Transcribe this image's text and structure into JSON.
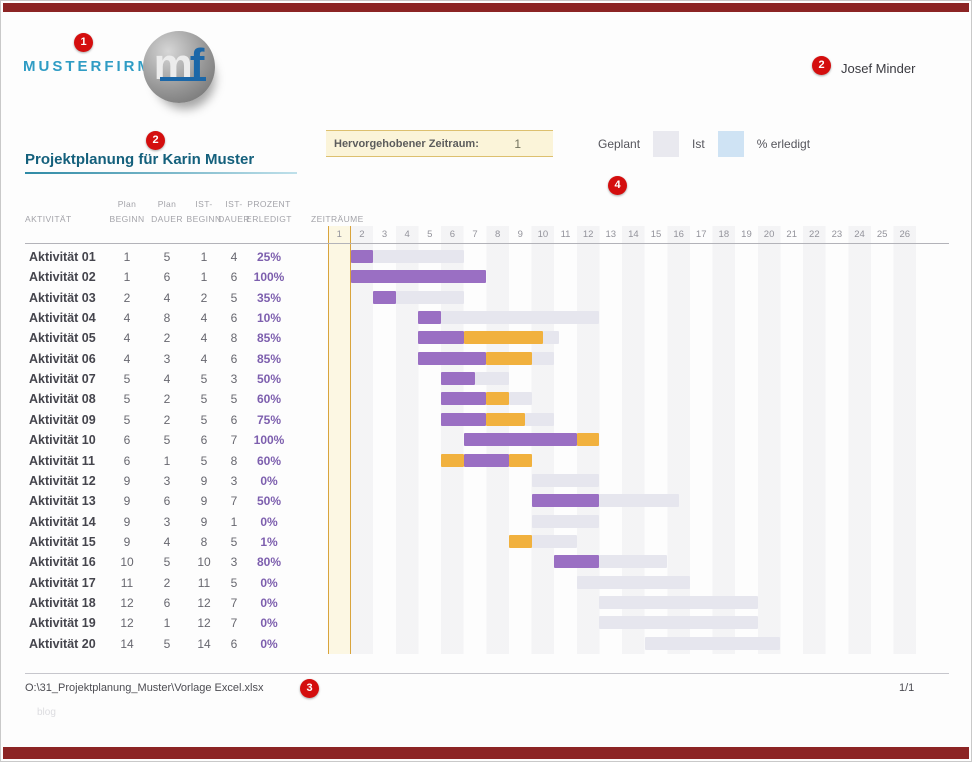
{
  "theme": {
    "accent_red": "#d40e0e",
    "frame_maroon": "#8c2424",
    "company_blue": "#2f9cc4",
    "title_teal": "#14607c",
    "logo_blue": "#1b67a8",
    "pct_purple": "#7d5fae"
  },
  "header": {
    "company": "MUSTERFIRMA",
    "logo_m": "m",
    "logo_f": "f",
    "user_name": "Josef Minder"
  },
  "callouts": {
    "n1": "1",
    "n2": "2",
    "n3": "3",
    "n4": "4"
  },
  "title": {
    "text": "Projektplanung für Karin Muster"
  },
  "highlight": {
    "label": "Hervorgehobener Zeitraum:",
    "value": "1"
  },
  "legend": {
    "labels": [
      "Geplant",
      "Ist",
      "% erledigt"
    ],
    "swatch_colors": [
      "#e9e9ef",
      "#cfe3f4"
    ]
  },
  "columns": {
    "activity": "AKTIVITÄT",
    "plan_beginn": {
      "l1": "Plan",
      "l2": "BEGINN"
    },
    "plan_dauer": {
      "l1": "Plan",
      "l2": "DAUER"
    },
    "ist_beginn": {
      "l1": "IST-",
      "l2": "BEGINN"
    },
    "ist_dauer": {
      "l1": "IST-",
      "l2": "DAUER"
    },
    "prozent": {
      "l1": "PROZENT",
      "l2": "ERLEDIGT"
    },
    "zeitraeume": "ZEITRÄUME"
  },
  "footer": {
    "path": "O:\\31_Projektplanung_Muster\\Vorlage Excel.xlsx",
    "page_indicator": "1/1",
    "watermark": "blog"
  },
  "chart_data": {
    "type": "gantt",
    "title": "Projektplanung für Karin Muster",
    "timeline": [
      1,
      2,
      3,
      4,
      5,
      6,
      7,
      8,
      9,
      10,
      11,
      12,
      13,
      14,
      15,
      16,
      17,
      18,
      19,
      20,
      21,
      22,
      23,
      24,
      25,
      26
    ],
    "highlighted_period": 1,
    "axis": {
      "min": 1,
      "max": 26
    },
    "colors": {
      "plan": "#e6e6ee",
      "ist": "#9a6fc3",
      "done": "#f1b13e",
      "band": "#d9a43c"
    },
    "rows": [
      {
        "name": "Aktivität 01",
        "plan_beginn": 1,
        "plan_dauer": 5,
        "ist_beginn": 1,
        "ist_dauer": 4,
        "prozent": "25%",
        "bars": [
          {
            "c": "ist",
            "s": 2,
            "w": 1
          },
          {
            "c": "plan",
            "s": 3,
            "w": 4
          }
        ]
      },
      {
        "name": "Aktivität 02",
        "plan_beginn": 1,
        "plan_dauer": 6,
        "ist_beginn": 1,
        "ist_dauer": 6,
        "prozent": "100%",
        "bars": [
          {
            "c": "ist",
            "s": 2,
            "w": 6
          }
        ]
      },
      {
        "name": "Aktivität 03",
        "plan_beginn": 2,
        "plan_dauer": 4,
        "ist_beginn": 2,
        "ist_dauer": 5,
        "prozent": "35%",
        "bars": [
          {
            "c": "ist",
            "s": 3,
            "w": 1
          },
          {
            "c": "plan",
            "s": 4,
            "w": 3
          }
        ]
      },
      {
        "name": "Aktivität 04",
        "plan_beginn": 4,
        "plan_dauer": 8,
        "ist_beginn": 4,
        "ist_dauer": 6,
        "prozent": "10%",
        "bars": [
          {
            "c": "ist",
            "s": 5,
            "w": 1
          },
          {
            "c": "plan",
            "s": 6,
            "w": 7
          }
        ]
      },
      {
        "name": "Aktivität 05",
        "plan_beginn": 4,
        "plan_dauer": 2,
        "ist_beginn": 4,
        "ist_dauer": 8,
        "prozent": "85%",
        "bars": [
          {
            "c": "ist",
            "s": 5,
            "w": 2
          },
          {
            "c": "done",
            "s": 7,
            "w": 3.5
          },
          {
            "c": "plan",
            "s": 10.5,
            "w": 0.7
          }
        ]
      },
      {
        "name": "Aktivität 06",
        "plan_beginn": 4,
        "plan_dauer": 3,
        "ist_beginn": 4,
        "ist_dauer": 6,
        "prozent": "85%",
        "bars": [
          {
            "c": "ist",
            "s": 5,
            "w": 3
          },
          {
            "c": "done",
            "s": 8,
            "w": 2
          },
          {
            "c": "plan",
            "s": 10,
            "w": 1
          }
        ]
      },
      {
        "name": "Aktivität 07",
        "plan_beginn": 5,
        "plan_dauer": 4,
        "ist_beginn": 5,
        "ist_dauer": 3,
        "prozent": "50%",
        "bars": [
          {
            "c": "ist",
            "s": 6,
            "w": 1.5
          },
          {
            "c": "plan",
            "s": 7.5,
            "w": 1.5
          }
        ]
      },
      {
        "name": "Aktivität 08",
        "plan_beginn": 5,
        "plan_dauer": 2,
        "ist_beginn": 5,
        "ist_dauer": 5,
        "prozent": "60%",
        "bars": [
          {
            "c": "ist",
            "s": 6,
            "w": 2
          },
          {
            "c": "done",
            "s": 8,
            "w": 1
          },
          {
            "c": "plan",
            "s": 9,
            "w": 1
          }
        ]
      },
      {
        "name": "Aktivität 09",
        "plan_beginn": 5,
        "plan_dauer": 2,
        "ist_beginn": 5,
        "ist_dauer": 6,
        "prozent": "75%",
        "bars": [
          {
            "c": "ist",
            "s": 6,
            "w": 2
          },
          {
            "c": "done",
            "s": 8,
            "w": 1.7
          },
          {
            "c": "plan",
            "s": 9.7,
            "w": 1.3
          }
        ]
      },
      {
        "name": "Aktivität 10",
        "plan_beginn": 6,
        "plan_dauer": 5,
        "ist_beginn": 6,
        "ist_dauer": 7,
        "prozent": "100%",
        "bars": [
          {
            "c": "ist",
            "s": 7,
            "w": 5
          },
          {
            "c": "done",
            "s": 12,
            "w": 1
          }
        ]
      },
      {
        "name": "Aktivität 11",
        "plan_beginn": 6,
        "plan_dauer": 1,
        "ist_beginn": 5,
        "ist_dauer": 8,
        "prozent": "60%",
        "bars": [
          {
            "c": "done",
            "s": 6,
            "w": 1
          },
          {
            "c": "ist",
            "s": 7,
            "w": 2
          },
          {
            "c": "done",
            "s": 9,
            "w": 1
          }
        ]
      },
      {
        "name": "Aktivität 12",
        "plan_beginn": 9,
        "plan_dauer": 3,
        "ist_beginn": 9,
        "ist_dauer": 3,
        "prozent": "0%",
        "bars": [
          {
            "c": "plan",
            "s": 10,
            "w": 3
          }
        ]
      },
      {
        "name": "Aktivität 13",
        "plan_beginn": 9,
        "plan_dauer": 6,
        "ist_beginn": 9,
        "ist_dauer": 7,
        "prozent": "50%",
        "bars": [
          {
            "c": "ist",
            "s": 10,
            "w": 3
          },
          {
            "c": "plan",
            "s": 13,
            "w": 3.5
          }
        ]
      },
      {
        "name": "Aktivität 14",
        "plan_beginn": 9,
        "plan_dauer": 3,
        "ist_beginn": 9,
        "ist_dauer": 1,
        "prozent": "0%",
        "bars": [
          {
            "c": "plan",
            "s": 10,
            "w": 3
          }
        ]
      },
      {
        "name": "Aktivität 15",
        "plan_beginn": 9,
        "plan_dauer": 4,
        "ist_beginn": 8,
        "ist_dauer": 5,
        "prozent": "1%",
        "bars": [
          {
            "c": "done",
            "s": 9,
            "w": 1
          },
          {
            "c": "plan",
            "s": 10,
            "w": 2
          }
        ]
      },
      {
        "name": "Aktivität 16",
        "plan_beginn": 10,
        "plan_dauer": 5,
        "ist_beginn": 10,
        "ist_dauer": 3,
        "prozent": "80%",
        "bars": [
          {
            "c": "ist",
            "s": 11,
            "w": 2
          },
          {
            "c": "plan",
            "s": 13,
            "w": 3
          }
        ]
      },
      {
        "name": "Aktivität 17",
        "plan_beginn": 11,
        "plan_dauer": 2,
        "ist_beginn": 11,
        "ist_dauer": 5,
        "prozent": "0%",
        "bars": [
          {
            "c": "plan",
            "s": 12,
            "w": 5
          }
        ]
      },
      {
        "name": "Aktivität 18",
        "plan_beginn": 12,
        "plan_dauer": 6,
        "ist_beginn": 12,
        "ist_dauer": 7,
        "prozent": "0%",
        "bars": [
          {
            "c": "plan",
            "s": 13,
            "w": 7
          }
        ]
      },
      {
        "name": "Aktivität 19",
        "plan_beginn": 12,
        "plan_dauer": 1,
        "ist_beginn": 12,
        "ist_dauer": 7,
        "prozent": "0%",
        "bars": [
          {
            "c": "plan",
            "s": 13,
            "w": 7
          }
        ]
      },
      {
        "name": "Aktivität 20",
        "plan_beginn": 14,
        "plan_dauer": 5,
        "ist_beginn": 14,
        "ist_dauer": 6,
        "prozent": "0%",
        "bars": [
          {
            "c": "plan",
            "s": 15,
            "w": 6
          }
        ]
      }
    ]
  }
}
